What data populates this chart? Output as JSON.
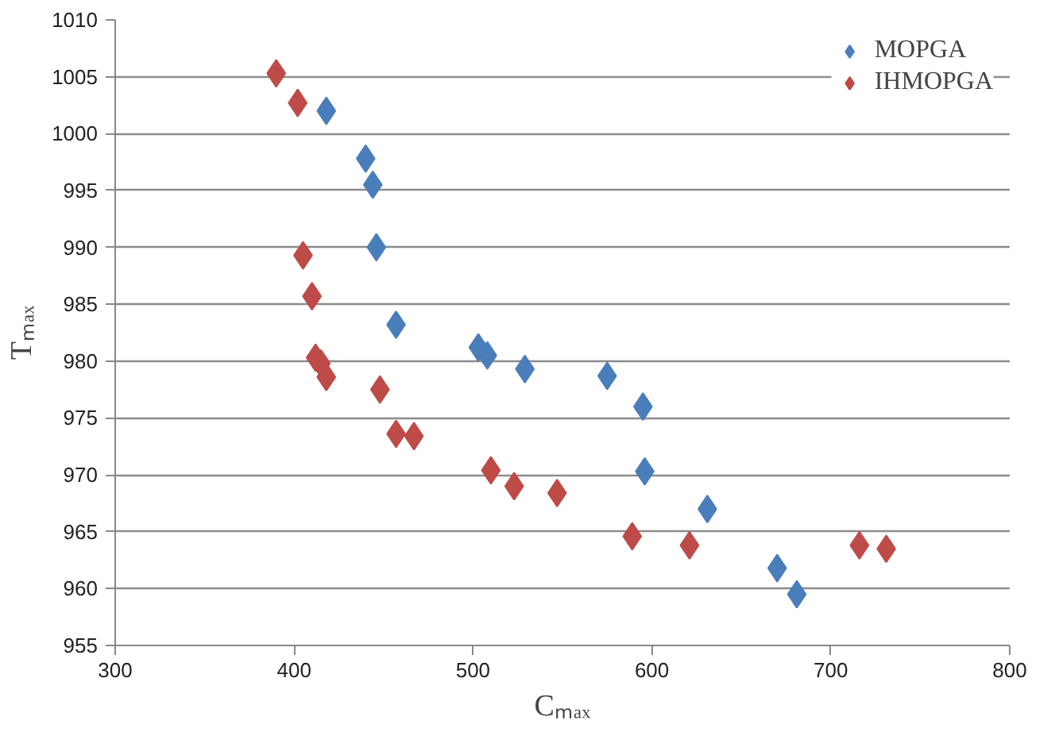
{
  "chart_data": {
    "type": "scatter",
    "xlabel": "Cₘₐₓ",
    "ylabel": "Tₘₐₓ",
    "xlim": [
      300,
      800
    ],
    "xticks": [
      300,
      400,
      500,
      600,
      700,
      800
    ],
    "ylim": [
      955,
      1010
    ],
    "yticks": [
      955,
      960,
      965,
      970,
      975,
      980,
      985,
      990,
      995,
      1000,
      1005,
      1010
    ],
    "grid": "y",
    "legend": "top right",
    "marker": "diamond",
    "series": [
      {
        "name": "MOPGA",
        "color": "#4a7ebb",
        "x": [
          418,
          440,
          444,
          446,
          457,
          503,
          508,
          529,
          575,
          595,
          596,
          631,
          670,
          681
        ],
        "values": [
          1002,
          997.8,
          995.5,
          990,
          983.2,
          981.2,
          980.5,
          979.3,
          978.7,
          976,
          970.3,
          967,
          961.8,
          959.5
        ]
      },
      {
        "name": "IHMOPGA",
        "color": "#be4b48",
        "x": [
          390,
          402,
          405,
          410,
          412,
          415,
          418,
          448,
          457,
          467,
          510,
          523,
          547,
          589,
          621,
          716,
          731
        ],
        "values": [
          1005.3,
          1002.7,
          989.3,
          985.7,
          980.3,
          979.8,
          978.6,
          977.5,
          973.6,
          973.4,
          970.4,
          969,
          968.4,
          964.6,
          963.8,
          963.8,
          963.5
        ]
      }
    ]
  }
}
